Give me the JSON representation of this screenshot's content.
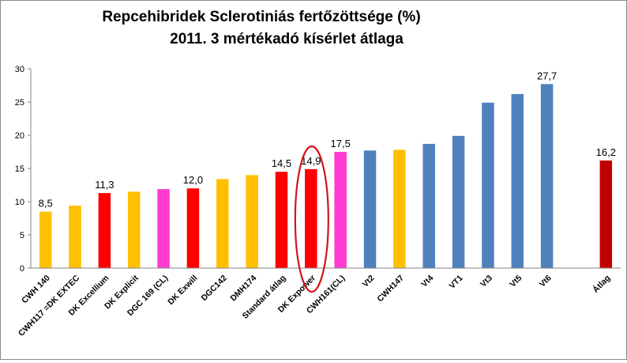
{
  "chart_data": {
    "type": "bar",
    "title": [
      "Repcehibridek  Sclerotiniás  fertőzöttsége (%)",
      "2011.  3 mértékadó kísérlet átlaga"
    ],
    "xlabel": "",
    "ylabel": "",
    "ylim": [
      0,
      30
    ],
    "yticks": [
      "0",
      "5",
      "10",
      "15",
      "20",
      "25",
      "30"
    ],
    "grid": false,
    "legend": "none",
    "categories": [
      "CWH 140",
      "CWH117 =DK EXTEC",
      "DK Excellium",
      "DK Explicit",
      "DGC 169 (CL)",
      "DK Exwill",
      "DGC142",
      "DMH174",
      "Standard  átlag",
      "DK Expower",
      "CWH161(CL)",
      "Vt2",
      "CWH147",
      "Vt4",
      "VT1",
      "Vt3",
      "Vt5",
      "Vt6",
      "",
      "Átlag"
    ],
    "values": [
      8.5,
      9.4,
      11.3,
      11.5,
      11.9,
      12.0,
      13.4,
      14.0,
      14.5,
      14.9,
      17.5,
      17.7,
      17.8,
      18.7,
      19.9,
      24.9,
      26.2,
      27.7,
      null,
      16.2
    ],
    "colors": [
      "#FFC000",
      "#FFC000",
      "#FF0000",
      "#FFC000",
      "#FF3CCF",
      "#FF0000",
      "#FFC000",
      "#FFC000",
      "#FF0000",
      "#FF0000",
      "#FF3CCF",
      "#4F81BD",
      "#FFC000",
      "#4F81BD",
      "#4F81BD",
      "#4F81BD",
      "#4F81BD",
      "#4F81BD",
      "",
      "#C00000"
    ],
    "data_labels": [
      "8,5",
      "",
      "11,3",
      "",
      "",
      "12,0",
      "",
      "",
      "14,5",
      "14,9",
      "17,5",
      "",
      "",
      "",
      "",
      "",
      "",
      "27,7",
      "",
      "16,2"
    ],
    "highlight": {
      "category": "DK Expower",
      "shape": "ellipse",
      "color": "#D0161B"
    }
  }
}
